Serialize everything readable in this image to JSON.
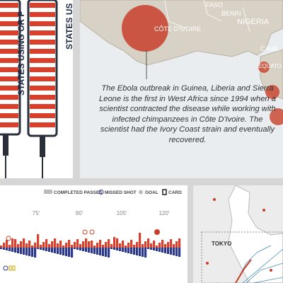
{
  "syringe_panel": {
    "labels": [
      "STATES USING OR P",
      "STATES US"
    ]
  },
  "ebola_map": {
    "labels": [
      "FASO",
      "BENIN",
      "NIGERIA",
      "CÔTE D'IVOIRE",
      "CAME",
      "EQUATO"
    ],
    "text": "The Ebola outbreak in Guinea, Liberia and Sierra Leone is the first in West Africa since 1994 when a scientist contracted the disease while working with infected chimpanzees in Côte D'Ivoire. The scientist had the Ivory Coast strain and eventually recovered."
  },
  "match_chart": {
    "legend": [
      "COMPLETED PASSES",
      "MISSED SHOT",
      "GOAL",
      "CARD"
    ],
    "ticks": [
      "75'",
      "90'",
      "105'",
      "120'"
    ]
  },
  "japan_map": {
    "labels": [
      "TOKYO"
    ]
  }
}
